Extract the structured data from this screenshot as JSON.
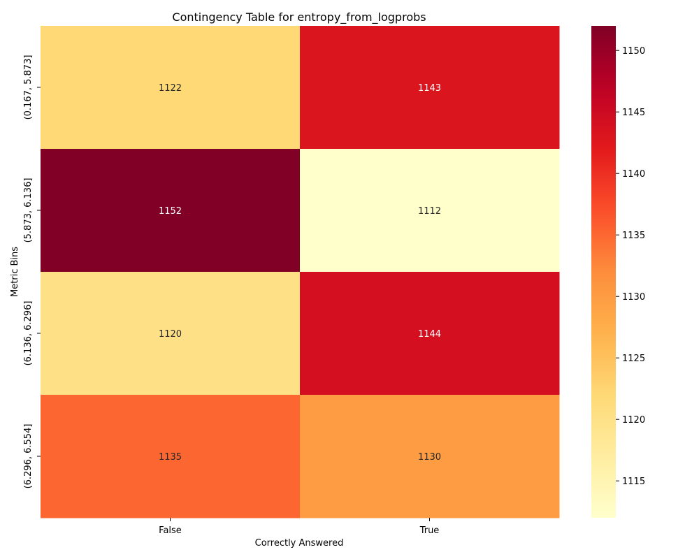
{
  "chart_data": {
    "type": "heatmap",
    "title": "Contingency Table for entropy_from_logprobs",
    "xlabel": "Correctly Answered",
    "ylabel": "Metric Bins",
    "x_categories": [
      "False",
      "True"
    ],
    "y_categories": [
      "(0.167, 5.873]",
      "(5.873, 6.136]",
      "(6.136, 6.296]",
      "(6.296, 6.554]"
    ],
    "values": [
      [
        1122,
        1143
      ],
      [
        1152,
        1112
      ],
      [
        1120,
        1144
      ],
      [
        1135,
        1130
      ]
    ],
    "colorbar": {
      "colormap": "YlOrRd",
      "range": [
        1112,
        1152
      ],
      "ticks": [
        1115,
        1120,
        1125,
        1130,
        1135,
        1140,
        1145,
        1150
      ]
    },
    "grid": false
  }
}
